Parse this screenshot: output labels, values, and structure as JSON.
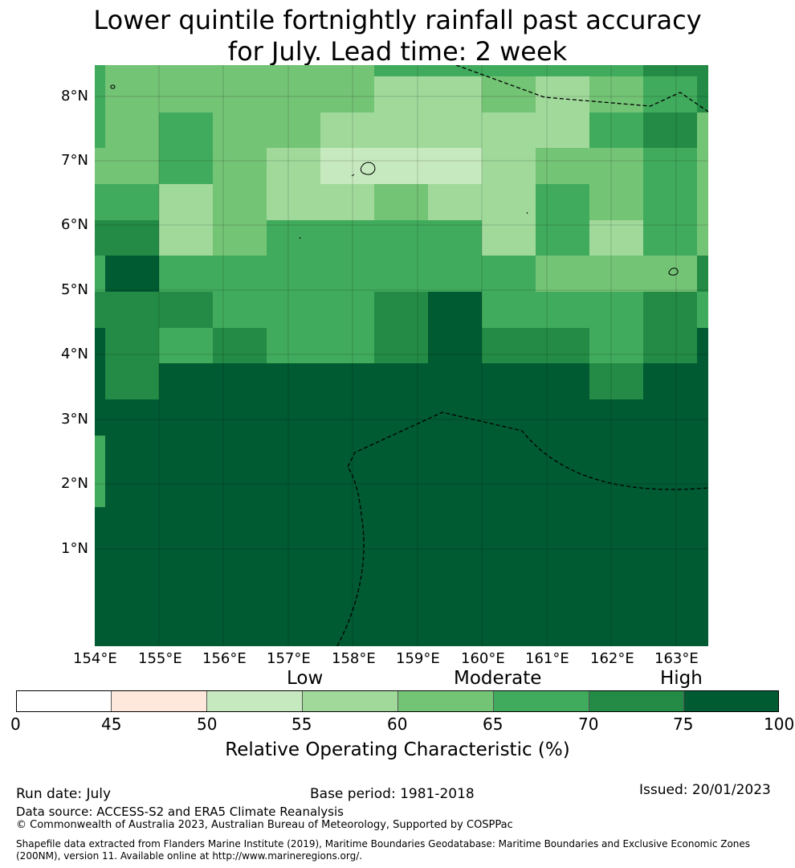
{
  "title_line1": "Lower quintile fortnightly rainfall past accuracy",
  "title_line2": "for July. Lead time: 2 week",
  "lat_labels": [
    "8°N",
    "7°N",
    "6°N",
    "5°N",
    "4°N",
    "3°N",
    "2°N",
    "1°N"
  ],
  "lon_labels": [
    "154°E",
    "155°E",
    "156°E",
    "157°E",
    "158°E",
    "159°E",
    "160°E",
    "161°E",
    "162°E",
    "163°E"
  ],
  "categories": {
    "low": "Low",
    "moderate": "Moderate",
    "high": "High"
  },
  "colorbar": {
    "ticks": [
      "0",
      "45",
      "50",
      "55",
      "60",
      "65",
      "70",
      "75",
      "100"
    ],
    "colors": [
      "#ffffff",
      "#fee8dc",
      "#c7e9c0",
      "#a1d99b",
      "#74c476",
      "#41ab5d",
      "#238b45",
      "#005a32"
    ],
    "label": "Relative Operating Characteristic (%)"
  },
  "footer": {
    "run_date": "Run date: July",
    "base_period": "Base period: 1981-2018",
    "issued": "Issued: 20/01/2023",
    "data_source": "Data source: ACCESS-S2 and ERA5 Climate Reanalysis",
    "copyright": "© Commonwealth of Australia 2023, Australian Bureau of Meteorology, Supported by COSPPac",
    "shapefile_1": "Shapefile data extracted from Flanders Marine Institute (2019), Maritime Boundaries Geodatabase: Maritime Boundaries and Exclusive Economic Zones",
    "shapefile_2": "(200NM), version 11. Available online at http://www.marineregions.org/."
  }
}
